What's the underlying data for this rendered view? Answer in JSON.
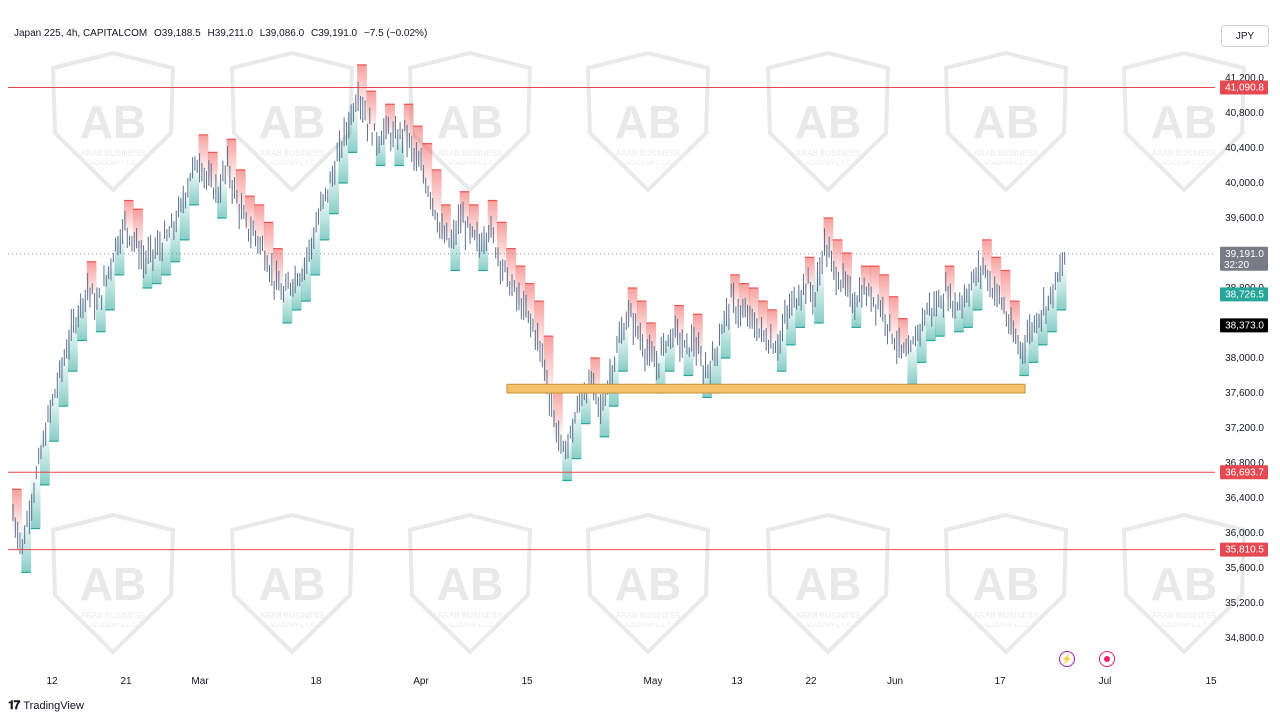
{
  "header": {
    "symbol": "Japan 225, 4h, CAPITALCOM",
    "open": "O39,188.5",
    "high": "H39,211.0",
    "low": "L39,086.0",
    "close": "C39,191.0",
    "change": "−7.5 (−0.02%)"
  },
  "currency_button": "JPY",
  "branding": "TradingView",
  "watermark": {
    "line1": "ARAB BUSINESS",
    "line2": "ACADEMY L.L.C"
  },
  "icons": {
    "bolt": "bolt-icon",
    "record": "record-icon",
    "logo": "tradingview-logo-icon"
  },
  "colors": {
    "candle": "#5b6f8c",
    "bull_cloud": "#26a69a",
    "bear_cloud": "#ef5350",
    "level_line": "#e54850",
    "zone_fill": "#f5c26b",
    "zone_border": "#c79034",
    "last_price_bg": "#787b86",
    "green_tag": "#26a69a",
    "black_tag": "#000000"
  },
  "chart_data": {
    "type": "candlestick",
    "timeframe": "4h",
    "y_range": [
      34600,
      41500
    ],
    "y_ticks": [
      "41,200.0",
      "40,800.0",
      "40,400.0",
      "40,000.0",
      "39,600.0",
      "39,200.0",
      "38,800.0",
      "38,400.0",
      "38,000.0",
      "37,600.0",
      "37,200.0",
      "36,800.0",
      "36,400.0",
      "36,000.0",
      "35,600.0",
      "35,200.0",
      "34,800.0"
    ],
    "x_ticks": [
      "12",
      "21",
      "Mar",
      "18",
      "Apr",
      "15",
      "May",
      "13",
      "22",
      "Jun",
      "17",
      "Jul",
      "15"
    ],
    "horizontal_levels": [
      {
        "value": 41090.8,
        "label": "41,090.8"
      },
      {
        "value": 36693.7,
        "label": "36,693.7"
      },
      {
        "value": 35810.5,
        "label": "35,810.5"
      }
    ],
    "support_zone": {
      "from": 37600,
      "to": 37700
    },
    "price_tags": [
      {
        "value": 39191.0,
        "label": "39,191.0",
        "sublabel": "32:20",
        "style": "last"
      },
      {
        "value": 38726.5,
        "label": "38,726.5",
        "style": "green"
      },
      {
        "value": 38373.0,
        "label": "38,373.0",
        "style": "black"
      }
    ],
    "last_price_line": 39191.0,
    "price_path": [
      [
        0,
        36200
      ],
      [
        1,
        35850
      ],
      [
        2,
        36400
      ],
      [
        3,
        36900
      ],
      [
        4,
        37400
      ],
      [
        5,
        37800
      ],
      [
        6,
        38200
      ],
      [
        7,
        38550
      ],
      [
        8,
        38800
      ],
      [
        9,
        38600
      ],
      [
        10,
        38900
      ],
      [
        11,
        39300
      ],
      [
        12,
        39500
      ],
      [
        13,
        39350
      ],
      [
        14,
        39100
      ],
      [
        15,
        39200
      ],
      [
        16,
        39300
      ],
      [
        17,
        39450
      ],
      [
        18,
        39700
      ],
      [
        19,
        40100
      ],
      [
        20,
        40250
      ],
      [
        21,
        40000
      ],
      [
        22,
        39900
      ],
      [
        23,
        40200
      ],
      [
        24,
        39800
      ],
      [
        25,
        39500
      ],
      [
        26,
        39400
      ],
      [
        27,
        39200
      ],
      [
        28,
        38900
      ],
      [
        29,
        38700
      ],
      [
        30,
        38900
      ],
      [
        31,
        39000
      ],
      [
        32,
        39300
      ],
      [
        33,
        39700
      ],
      [
        34,
        40000
      ],
      [
        35,
        40350
      ],
      [
        36,
        40700
      ],
      [
        37,
        41050
      ],
      [
        38,
        40700
      ],
      [
        39,
        40500
      ],
      [
        40,
        40600
      ],
      [
        41,
        40500
      ],
      [
        42,
        40600
      ],
      [
        43,
        40300
      ],
      [
        44,
        40100
      ],
      [
        45,
        39800
      ],
      [
        46,
        39400
      ],
      [
        47,
        39300
      ],
      [
        48,
        39600
      ],
      [
        49,
        39400
      ],
      [
        50,
        39300
      ],
      [
        51,
        39500
      ],
      [
        52,
        39200
      ],
      [
        53,
        38900
      ],
      [
        54,
        38700
      ],
      [
        55,
        38500
      ],
      [
        56,
        38300
      ],
      [
        57,
        37900
      ],
      [
        58,
        37300
      ],
      [
        59,
        36900
      ],
      [
        60,
        37200
      ],
      [
        61,
        37600
      ],
      [
        62,
        37700
      ],
      [
        63,
        37400
      ],
      [
        64,
        37800
      ],
      [
        65,
        38200
      ],
      [
        66,
        38500
      ],
      [
        67,
        38300
      ],
      [
        68,
        38050
      ],
      [
        69,
        37900
      ],
      [
        70,
        38200
      ],
      [
        71,
        38300
      ],
      [
        72,
        38100
      ],
      [
        73,
        38200
      ],
      [
        74,
        37850
      ],
      [
        75,
        37950
      ],
      [
        76,
        38350
      ],
      [
        77,
        38650
      ],
      [
        78,
        38500
      ],
      [
        79,
        38450
      ],
      [
        80,
        38300
      ],
      [
        81,
        38200
      ],
      [
        82,
        38150
      ],
      [
        83,
        38500
      ],
      [
        84,
        38700
      ],
      [
        85,
        38850
      ],
      [
        86,
        38700
      ],
      [
        87,
        39300
      ],
      [
        88,
        39000
      ],
      [
        89,
        38850
      ],
      [
        90,
        38650
      ],
      [
        91,
        38750
      ],
      [
        92,
        38700
      ],
      [
        93,
        38600
      ],
      [
        94,
        38350
      ],
      [
        95,
        38100
      ],
      [
        96,
        38000
      ],
      [
        97,
        38300
      ],
      [
        98,
        38550
      ],
      [
        99,
        38600
      ],
      [
        100,
        38750
      ],
      [
        101,
        38600
      ],
      [
        102,
        38700
      ],
      [
        103,
        38900
      ],
      [
        104,
        39050
      ],
      [
        105,
        38800
      ],
      [
        106,
        38650
      ],
      [
        107,
        38300
      ],
      [
        108,
        38100
      ],
      [
        109,
        38300
      ],
      [
        110,
        38500
      ],
      [
        111,
        38650
      ],
      [
        112,
        38900
      ],
      [
        113,
        39191
      ]
    ]
  }
}
